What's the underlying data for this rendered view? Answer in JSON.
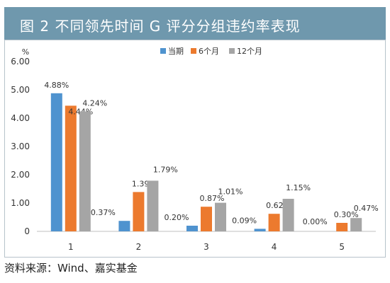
{
  "header": {
    "title": "图 2   不同领先时间 G 评分分组违约率表现"
  },
  "source": "资料来源：Wind、嘉实基金",
  "colors": {
    "header_bg": "#6f98ad",
    "series": [
      "#4f93cf",
      "#ec7a2e",
      "#a5a5a5"
    ]
  },
  "chart_data": {
    "type": "bar",
    "title": "",
    "xlabel": "",
    "ylabel": "%",
    "ylim": [
      0,
      6
    ],
    "yticks": [
      0,
      1,
      2,
      3,
      4,
      5,
      6
    ],
    "ytick_labels": [
      "0",
      "1.00",
      "2.00",
      "3.00",
      "4.00",
      "5.00",
      "6.00"
    ],
    "grid": false,
    "legend_position": "top-center",
    "categories": [
      "1",
      "2",
      "3",
      "4",
      "5"
    ],
    "series": [
      {
        "name": "当期",
        "values": [
          4.88,
          0.37,
          0.2,
          0.09,
          0.0
        ],
        "labels": [
          "4.88%",
          "0.37%",
          "0.20%",
          "0.09%",
          "0.00%"
        ]
      },
      {
        "name": "6个月",
        "values": [
          4.44,
          1.39,
          0.87,
          0.62,
          0.3
        ],
        "labels": [
          "4.44%",
          "1.39%",
          "0.87%",
          "0.62%",
          "0.30%"
        ]
      },
      {
        "name": "12个月",
        "values": [
          4.24,
          1.79,
          1.01,
          1.15,
          0.47
        ],
        "labels": [
          "4.24%",
          "1.79%",
          "1.01%",
          "1.15%",
          "0.47%"
        ]
      }
    ]
  }
}
